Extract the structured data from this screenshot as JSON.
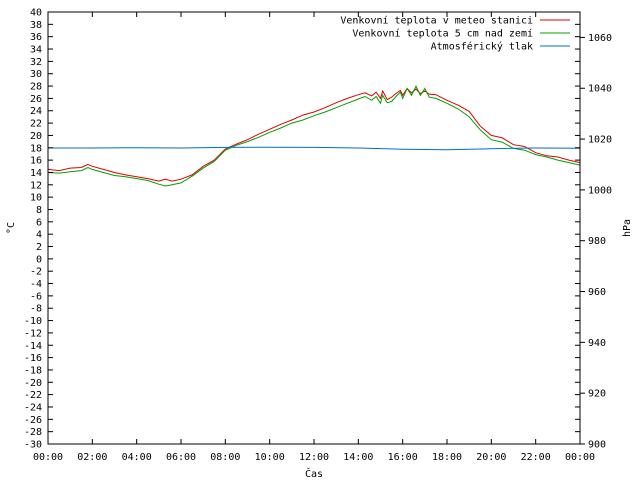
{
  "chart_data": {
    "type": "line",
    "xlabel": "Čas",
    "ylabel_left": "°C",
    "ylabel_right": "hPa",
    "x_ticks": [
      "00:00",
      "02:00",
      "04:00",
      "06:00",
      "08:00",
      "10:00",
      "12:00",
      "14:00",
      "16:00",
      "18:00",
      "20:00",
      "22:00",
      "00:00"
    ],
    "x_range_hours": [
      0,
      24
    ],
    "ylim_left": [
      -30,
      40
    ],
    "ylim_right": [
      900,
      1070
    ],
    "yticks_left": [
      -30,
      -28,
      -26,
      -24,
      -22,
      -20,
      -18,
      -16,
      -14,
      -12,
      -10,
      -8,
      -6,
      -4,
      -2,
      0,
      2,
      4,
      6,
      8,
      10,
      12,
      14,
      16,
      18,
      20,
      22,
      24,
      26,
      28,
      30,
      32,
      34,
      36,
      38,
      40
    ],
    "yticks_right": [
      900,
      920,
      940,
      960,
      980,
      1000,
      1020,
      1040,
      1060
    ],
    "grid": false,
    "legend_position": "top-right",
    "series": [
      {
        "name": "Venkovní teplota v meteo stanici",
        "color": "#e00000",
        "axis": "left",
        "x": [
          0,
          0.5,
          1,
          1.5,
          1.8,
          2,
          2.5,
          3,
          3.5,
          4,
          4.5,
          5,
          5.3,
          5.6,
          6,
          6.5,
          7,
          7.5,
          8,
          8.5,
          9,
          9.5,
          10,
          10.5,
          11,
          11.5,
          12,
          12.5,
          13,
          13.5,
          14,
          14.3,
          14.6,
          14.8,
          15,
          15.1,
          15.3,
          15.5,
          15.7,
          15.9,
          16,
          16.2,
          16.4,
          16.6,
          16.8,
          17,
          17.2,
          17.5,
          18,
          18.5,
          19,
          19.5,
          20,
          20.5,
          21,
          21.5,
          22,
          22.5,
          23,
          23.5,
          24
        ],
        "y": [
          14.5,
          14.3,
          14.7,
          14.8,
          15.3,
          15.0,
          14.5,
          14.0,
          13.6,
          13.3,
          13.0,
          12.6,
          12.9,
          12.6,
          12.9,
          13.6,
          15.0,
          16.0,
          17.8,
          18.6,
          19.3,
          20.2,
          21.0,
          21.8,
          22.5,
          23.3,
          23.8,
          24.5,
          25.3,
          26.0,
          26.6,
          26.9,
          26.4,
          27.0,
          26.0,
          27.2,
          25.8,
          26.2,
          26.8,
          27.3,
          26.5,
          27.6,
          26.9,
          27.5,
          26.8,
          27.2,
          26.7,
          26.6,
          25.7,
          24.9,
          23.9,
          21.5,
          20.0,
          19.6,
          18.5,
          18.2,
          17.2,
          16.7,
          16.5,
          16.0,
          15.6
        ]
      },
      {
        "name": "Venkovní teplota 5 cm nad zemí",
        "color": "#00a000",
        "axis": "left",
        "x": [
          0,
          0.5,
          1,
          1.5,
          1.8,
          2,
          2.5,
          3,
          3.5,
          4,
          4.5,
          5,
          5.3,
          5.6,
          6,
          6.5,
          7,
          7.5,
          8,
          8.5,
          9,
          9.5,
          10,
          10.5,
          11,
          11.5,
          12,
          12.5,
          13,
          13.5,
          14,
          14.3,
          14.6,
          14.8,
          15,
          15.1,
          15.3,
          15.5,
          15.7,
          15.9,
          16,
          16.2,
          16.4,
          16.6,
          16.8,
          17,
          17.2,
          17.5,
          18,
          18.5,
          19,
          19.5,
          20,
          20.5,
          21,
          21.5,
          22,
          22.5,
          23,
          23.5,
          24
        ],
        "y": [
          14.0,
          13.9,
          14.1,
          14.3,
          14.8,
          14.5,
          14.0,
          13.5,
          13.3,
          13.0,
          12.7,
          12.1,
          11.8,
          12.0,
          12.3,
          13.4,
          14.7,
          15.8,
          17.6,
          18.4,
          19.0,
          19.7,
          20.5,
          21.2,
          22.0,
          22.5,
          23.2,
          23.8,
          24.5,
          25.2,
          25.9,
          26.3,
          25.7,
          26.3,
          25.2,
          26.5,
          25.3,
          25.5,
          26.3,
          27.0,
          26.0,
          27.6,
          26.5,
          28.0,
          26.5,
          27.6,
          26.2,
          26.0,
          25.2,
          24.3,
          23.0,
          20.9,
          19.3,
          18.9,
          17.9,
          17.6,
          16.9,
          16.5,
          16.0,
          15.6,
          15.2
        ]
      },
      {
        "name": "Atmosférický tlak",
        "color": "#0070c0",
        "axis": "right",
        "x": [
          0,
          2,
          4,
          6,
          8,
          10,
          12,
          14,
          16,
          18,
          20,
          22,
          24
        ],
        "y": [
          1016.5,
          1016.5,
          1016.6,
          1016.5,
          1016.7,
          1016.8,
          1016.7,
          1016.5,
          1016.0,
          1015.8,
          1016.2,
          1016.5,
          1016.4
        ]
      }
    ]
  }
}
